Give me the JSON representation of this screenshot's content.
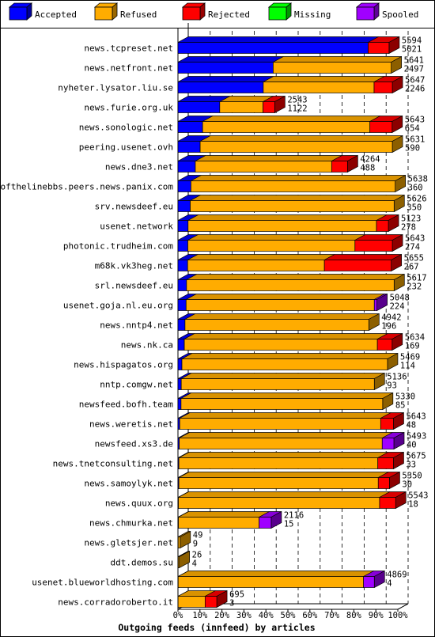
{
  "chart_data": {
    "type": "bar",
    "orientation": "horizontal",
    "stacked": true,
    "title": "Outgoing feeds (innfeed) by articles",
    "legend_position": "top",
    "grid": true,
    "xlim": [
      0,
      100
    ],
    "x_unit": "%",
    "x_ticks": [
      "0%",
      "10%",
      "20%",
      "30%",
      "40%",
      "50%",
      "60%",
      "70%",
      "80%",
      "90%",
      "100%"
    ],
    "legend": [
      {
        "name": "Accepted",
        "color": "#0000ff"
      },
      {
        "name": "Refused",
        "color": "#ffac00"
      },
      {
        "name": "Rejected",
        "color": "#ff0000"
      },
      {
        "name": "Missing",
        "color": "#00ff00"
      },
      {
        "name": "Spooled",
        "color": "#a000ff"
      }
    ],
    "categories": [
      "news.tcpreset.net",
      "news.netfront.net",
      "nyheter.lysator.liu.se",
      "news.furie.org.uk",
      "news.sonologic.net",
      "peering.usenet.ovh",
      "news.dne3.net",
      "endofthelinebbs.peers.news.panix.com",
      "srv.newsdeef.eu",
      "usenet.network",
      "photonic.trudheim.com",
      "m68k.vk3heg.net",
      "srl.newsdeef.eu",
      "usenet.goja.nl.eu.org",
      "news.nntp4.net",
      "news.nk.ca",
      "news.hispagatos.org",
      "nntp.comgw.net",
      "newsfeed.bofh.team",
      "news.weretis.net",
      "newsfeed.xs3.de",
      "news.tnetconsulting.net",
      "news.samoylyk.net",
      "news.quux.org",
      "news.chmurka.net",
      "news.gletsjer.net",
      "ddt.demos.su",
      "usenet.blueworldhosting.com",
      "news.corradoroberto.it"
    ],
    "offered": [
      5594,
      5641,
      5647,
      2543,
      5643,
      5631,
      4264,
      5638,
      5626,
      5123,
      5643,
      5655,
      5617,
      5048,
      4942,
      5634,
      5469,
      5136,
      5330,
      5643,
      5493,
      5675,
      5350,
      5543,
      2116,
      49,
      26,
      4869,
      695
    ],
    "accepted": [
      5021,
      2497,
      2246,
      1122,
      654,
      590,
      488,
      360,
      350,
      278,
      274,
      267,
      232,
      224,
      196,
      169,
      114,
      93,
      85,
      48,
      40,
      33,
      30,
      18,
      15,
      9,
      4,
      4,
      3
    ],
    "series": [
      {
        "name": "Accepted",
        "values": [
          86.5,
          43.3,
          38.8,
          19.0,
          11.2,
          10.1,
          7.9,
          5.9,
          5.6,
          4.6,
          4.5,
          4.4,
          3.9,
          3.7,
          3.2,
          2.9,
          1.8,
          1.5,
          1.4,
          0.8,
          0.6,
          0.4,
          0.4,
          0.2,
          0.2,
          0.1,
          0.1,
          0.1,
          0.05
        ]
      },
      {
        "name": "Refused",
        "values": [
          0,
          53.7,
          50.4,
          19.7,
          76.1,
          87.4,
          62.0,
          92.9,
          92.7,
          85.7,
          76.0,
          62.2,
          94.4,
          85.6,
          83.6,
          87.8,
          93.5,
          87.8,
          91.7,
          91.4,
          92.3,
          90.5,
          90.7,
          91.5,
          36.7,
          0.9,
          0.5,
          84.3,
          12.3
        ]
      },
      {
        "name": "Rejected",
        "values": [
          9.5,
          0,
          8.3,
          5.3,
          10.1,
          0,
          7.2,
          0,
          0,
          5.4,
          17.0,
          30.4,
          0,
          0,
          0,
          6.7,
          0,
          0,
          0,
          5.8,
          0,
          7.1,
          5.1,
          7.3,
          0,
          0,
          0,
          0,
          5.3
        ]
      },
      {
        "name": "Missing",
        "values": [
          0,
          0,
          0,
          0,
          0,
          0,
          0,
          0,
          0,
          0,
          0,
          0,
          0,
          0,
          0,
          0,
          0,
          0,
          0,
          0,
          0,
          0,
          0,
          0,
          0,
          0,
          0,
          0,
          0
        ]
      },
      {
        "name": "Spooled",
        "values": [
          0,
          0,
          0,
          0,
          0,
          0,
          0,
          0,
          0,
          0,
          0,
          0,
          0,
          1.2,
          0,
          0,
          0,
          0,
          0,
          0,
          5.3,
          0,
          0,
          0,
          5.5,
          0,
          0,
          4.9,
          0
        ]
      }
    ]
  }
}
